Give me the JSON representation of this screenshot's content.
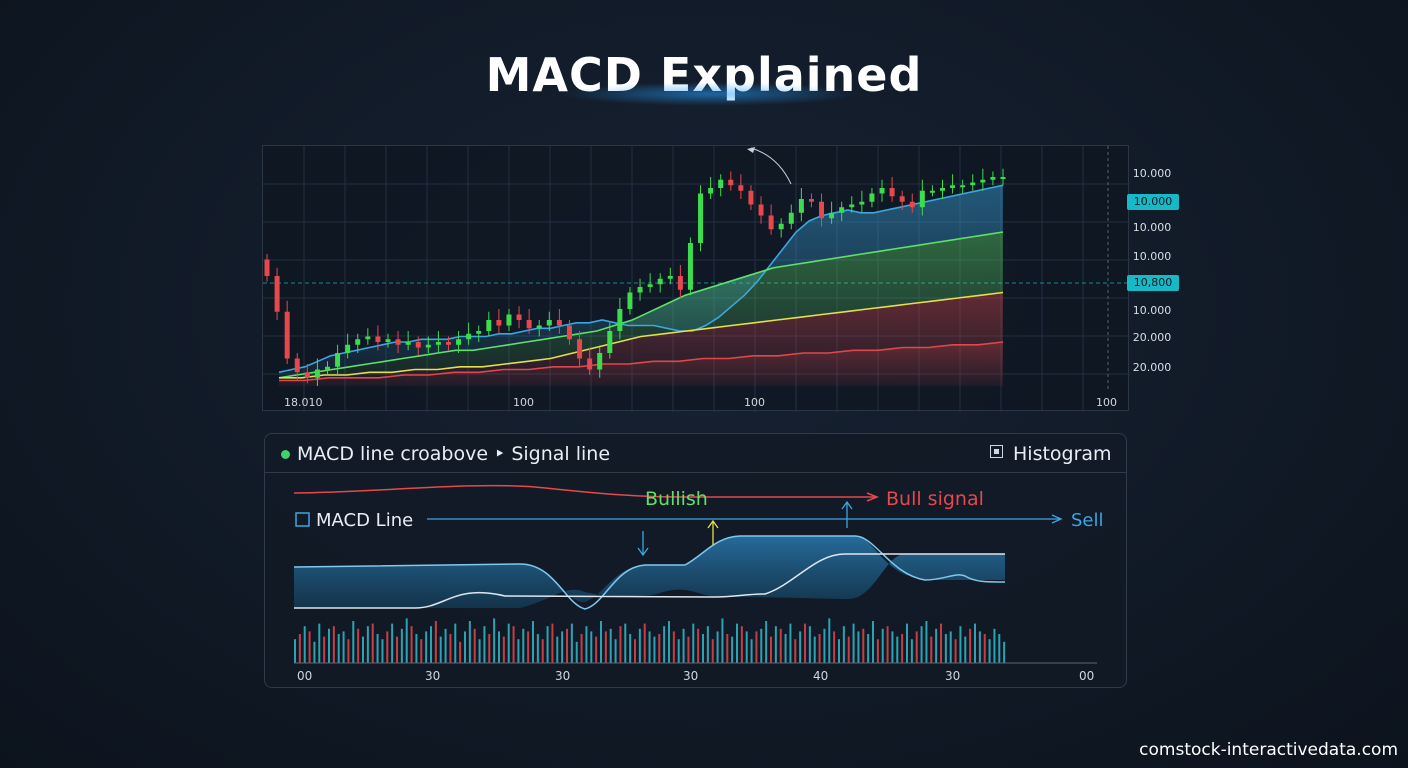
{
  "title": "MACD Explained",
  "watermark": "comstock-interactivedata.com",
  "price_panel": {
    "y_labels": [
      {
        "text": "10.000",
        "highlight": false
      },
      {
        "text": "10.000",
        "highlight": true
      },
      {
        "text": "10.000",
        "highlight": false
      },
      {
        "text": "10.000",
        "highlight": false
      },
      {
        "text": "10,800",
        "highlight": true
      },
      {
        "text": "10.000",
        "highlight": false
      },
      {
        "text": "20.000",
        "highlight": false
      },
      {
        "text": "20.000",
        "highlight": false
      }
    ],
    "x_labels": [
      "18.010",
      "100",
      "100",
      "100"
    ]
  },
  "macd_panel": {
    "legend_text": "MACD line croabove ‣ Signal line",
    "histogram_label": "Histogram",
    "macd_line_label": "MACD Line",
    "bullish_label": "Bullish",
    "bull_signal_label": "Bull signal",
    "sell_label": "Sell",
    "x_labels": [
      "00",
      "30",
      "30",
      "30",
      "40",
      "30",
      "00"
    ]
  },
  "colors": {
    "up": "#3ddc4e",
    "down": "#e5484d",
    "ma_blue": "#3aa7e0",
    "ma_green": "#5fe06a",
    "ma_yellow": "#e3e04a",
    "ma_red": "#e0474c",
    "teal": "#18b9c7"
  },
  "chart_data": [
    {
      "type": "candlestick",
      "close": [
        40,
        27,
        10,
        5,
        3,
        6,
        7,
        12,
        15,
        17,
        18,
        16,
        17,
        15,
        16,
        14,
        15,
        16,
        15,
        17,
        19,
        20,
        24,
        22,
        26,
        24,
        21,
        22,
        24,
        22,
        17,
        10,
        6,
        12,
        20,
        28,
        34,
        36,
        37,
        39,
        40,
        35,
        52,
        70,
        72,
        75,
        73,
        71,
        66,
        62,
        57,
        59,
        63,
        68,
        67,
        61,
        63,
        65,
        66,
        67,
        70,
        72,
        69,
        67,
        65,
        71,
        71,
        72,
        73,
        73,
        74,
        75,
        76,
        76
      ]
    },
    {
      "type": "line",
      "series": [
        {
          "values": [
            5,
            6,
            7,
            9,
            11,
            12,
            13,
            14,
            15,
            16,
            16,
            17,
            17,
            17,
            18,
            18,
            18,
            19,
            19,
            20,
            21,
            21,
            22,
            23,
            23,
            24,
            23,
            22,
            22,
            22,
            21,
            20,
            20,
            22,
            25,
            29,
            33,
            38,
            44,
            50,
            56,
            60,
            62,
            63,
            64,
            63,
            63,
            64,
            65,
            66,
            67,
            68,
            69,
            70,
            71,
            72,
            73
          ]
        },
        {
          "values": [
            3,
            4,
            5,
            6,
            7,
            8,
            9,
            10,
            11,
            12,
            13,
            13,
            14,
            15,
            16,
            17,
            18,
            19,
            20,
            22,
            24,
            27,
            30,
            33,
            35,
            37,
            39,
            41,
            43,
            44,
            45,
            46,
            47,
            48,
            49,
            50,
            51,
            52,
            53,
            54,
            55,
            56
          ]
        },
        {
          "values": [
            3,
            3,
            4,
            4,
            5,
            5,
            6,
            6,
            7,
            7,
            8,
            9,
            10,
            12,
            14,
            16,
            18,
            19,
            20,
            21,
            22,
            23,
            24,
            25,
            26,
            27,
            28,
            29,
            30,
            31,
            32,
            33,
            34
          ]
        },
        {
          "values": [
            2,
            2,
            3,
            3,
            3,
            4,
            4,
            5,
            5,
            6,
            6,
            7,
            7,
            8,
            8,
            9,
            9,
            10,
            10,
            11,
            11,
            12,
            12,
            13,
            13,
            14,
            14,
            15,
            15,
            16
          ]
        }
      ]
    },
    {
      "type": "bar",
      "values": [
        3,
        -5,
        8,
        -6,
        2,
        9,
        -4,
        7,
        -8,
        5,
        6,
        -3,
        10,
        -7,
        4,
        8,
        -9,
        5,
        3,
        -6,
        9,
        -4,
        7,
        11,
        -8,
        5,
        -3,
        6,
        8,
        -10,
        4,
        7,
        -5,
        9,
        -2,
        6,
        10,
        -7,
        3,
        8,
        -5,
        11,
        6,
        -4,
        9,
        -8,
        3,
        7,
        -6,
        10,
        5,
        -3,
        8,
        -9,
        4,
        6,
        -7,
        9,
        2,
        -5,
        8,
        6,
        -4,
        10,
        -6,
        7,
        3,
        -8,
        9,
        5,
        -3,
        7,
        -9,
        6,
        4,
        -5,
        8,
        10,
        -6,
        3,
        7,
        -4,
        9,
        -7,
        5,
        8,
        -3,
        6,
        11,
        -5,
        4,
        9,
        -8,
        6,
        3,
        -6,
        7,
        10,
        -4,
        8,
        -7,
        5,
        9,
        -3,
        6,
        -9,
        8,
        4,
        -5,
        7,
        11,
        -6,
        3,
        8,
        -4,
        9,
        6,
        -7,
        5,
        10,
        -3,
        7,
        -8,
        6,
        4,
        -5,
        9,
        3,
        -6,
        8,
        10,
        -4,
        7,
        -9,
        5,
        6,
        -3,
        8,
        4,
        -7,
        9,
        6,
        -5,
        3,
        7,
        5,
        2
      ]
    }
  ]
}
